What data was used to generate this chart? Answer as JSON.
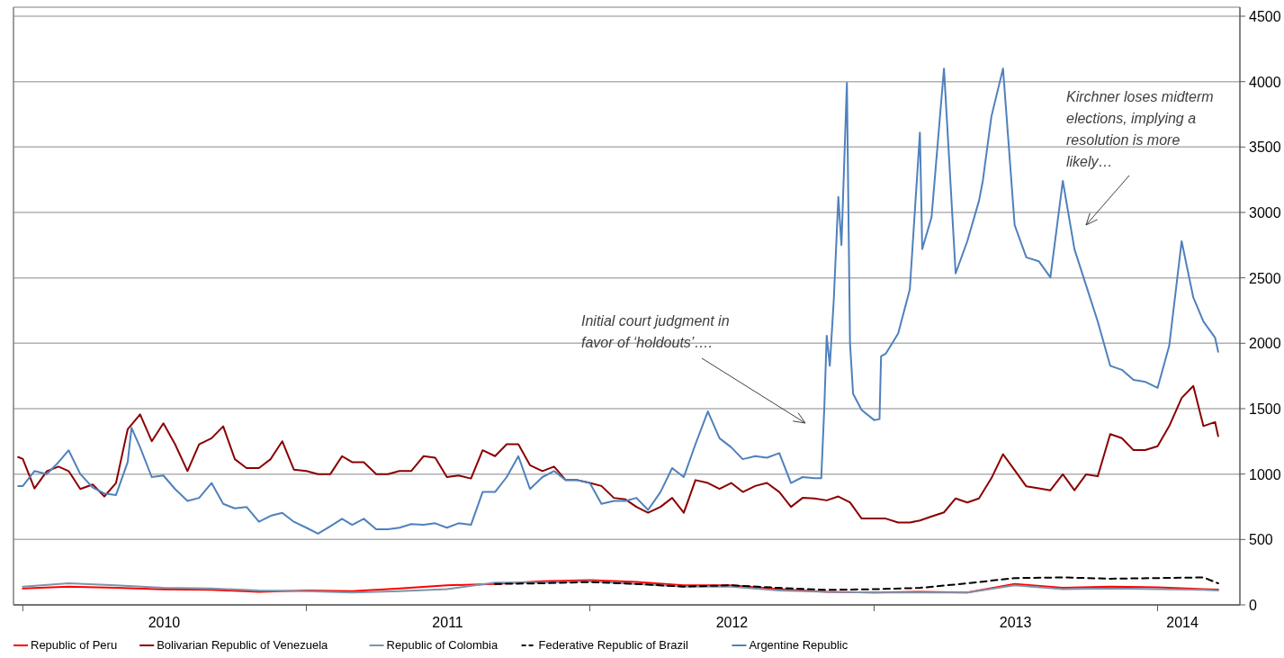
{
  "chart_data": {
    "type": "line",
    "xlim": [
      "2009-12-20",
      "2014-04-17"
    ],
    "ylim": [
      0,
      4500
    ],
    "yticks": [
      0,
      500,
      1000,
      1500,
      2000,
      2500,
      3000,
      3500,
      4000,
      4500
    ],
    "xticks": [
      {
        "value": "2010-01-01",
        "label": null
      },
      {
        "value": "2010-07-02",
        "label": "2010"
      },
      {
        "value": "2011-01-01",
        "label": null
      },
      {
        "value": "2011-07-02",
        "label": "2011"
      },
      {
        "value": "2012-01-01",
        "label": null
      },
      {
        "value": "2012-07-02",
        "label": "2012"
      },
      {
        "value": "2013-01-01",
        "label": null
      },
      {
        "value": "2013-07-02",
        "label": "2013"
      },
      {
        "value": "2014-01-01",
        "label": null
      },
      {
        "value": "2014-02-02",
        "label": "2014"
      }
    ],
    "grid": "y",
    "legend": "bottom",
    "annotations": [
      "Initial court judgment in favor of ‘holdouts’….",
      "Kirchner loses midterm elections, implying a resolution is more likely…"
    ],
    "x": [
      "2009-12-26",
      "2010-01-01",
      "2010-01-16",
      "2010-02-01",
      "2010-02-16",
      "2010-03-01",
      "2010-03-16",
      "2010-04-01",
      "2010-04-16",
      "2010-05-01",
      "2010-05-16",
      "2010-06-01",
      "2010-06-16",
      "2010-07-01",
      "2010-07-16",
      "2010-08-01",
      "2010-08-16",
      "2010-09-01",
      "2010-09-16",
      "2010-10-01",
      "2010-10-16",
      "2010-11-01",
      "2010-11-16",
      "2010-12-01",
      "2010-12-16",
      "2011-01-01",
      "2011-01-16",
      "2011-02-01",
      "2011-02-16",
      "2011-03-01",
      "2011-03-16",
      "2011-04-01",
      "2011-04-16",
      "2011-05-01",
      "2011-05-16",
      "2011-06-01",
      "2011-06-16",
      "2011-07-01",
      "2011-07-16",
      "2011-08-01",
      "2011-08-16",
      "2011-09-01",
      "2011-09-16",
      "2011-10-01",
      "2011-10-16",
      "2011-11-01",
      "2011-11-16",
      "2011-12-01",
      "2011-12-16",
      "2012-01-01",
      "2012-01-16",
      "2012-02-01",
      "2012-02-16",
      "2012-03-01",
      "2012-03-16",
      "2012-04-01",
      "2012-04-16",
      "2012-05-01",
      "2012-05-16",
      "2012-06-01",
      "2012-06-16",
      "2012-07-01",
      "2012-07-16",
      "2012-08-01",
      "2012-08-16",
      "2012-09-01",
      "2012-09-16",
      "2012-10-01",
      "2012-10-16",
      "2012-11-01",
      "2012-11-16",
      "2012-12-01",
      "2012-12-16",
      "2013-01-01",
      "2013-01-16",
      "2013-02-01",
      "2013-02-16",
      "2013-03-01",
      "2013-03-16",
      "2013-04-01",
      "2013-04-16",
      "2013-05-01",
      "2013-05-16",
      "2013-06-01",
      "2013-06-16",
      "2013-07-01",
      "2013-07-16",
      "2013-08-01",
      "2013-08-16",
      "2013-09-01",
      "2013-09-16",
      "2013-10-01",
      "2013-10-16",
      "2013-11-01",
      "2013-11-16",
      "2013-12-01",
      "2013-12-16",
      "2014-01-01",
      "2014-01-16",
      "2014-02-01",
      "2014-02-16",
      "2014-03-01",
      "2014-03-16",
      "2014-03-20"
    ],
    "series": [
      {
        "name": "Republic of Peru",
        "color": "#ff0000",
        "x": [
          "2010-01-01",
          "2010-03-01",
          "2010-05-01",
          "2010-07-01",
          "2010-09-01",
          "2010-11-01",
          "2011-01-01",
          "2011-03-01",
          "2011-05-01",
          "2011-07-01",
          "2011-09-01",
          "2011-11-01",
          "2012-01-01",
          "2012-03-01",
          "2012-05-01",
          "2012-07-01",
          "2012-09-01",
          "2012-11-01",
          "2013-01-01",
          "2013-03-01",
          "2013-05-01",
          "2013-07-01",
          "2013-09-01",
          "2013-11-01",
          "2014-01-01",
          "2014-03-01",
          "2014-03-20"
        ],
        "values": [
          125,
          140,
          130,
          118,
          115,
          100,
          110,
          105,
          125,
          150,
          160,
          180,
          190,
          175,
          150,
          150,
          120,
          100,
          95,
          100,
          95,
          160,
          130,
          140,
          135,
          120,
          117
        ]
      },
      {
        "name": "Bolivarian Republic of Venezuela",
        "color": "#8b0000",
        "values": [
          1130,
          1115,
          890,
          1023,
          1057,
          1023,
          886,
          920,
          829,
          932,
          1342,
          1456,
          1251,
          1388,
          1228,
          1023,
          1228,
          1274,
          1365,
          1114,
          1046,
          1046,
          1114,
          1251,
          1034,
          1023,
          1000,
          1000,
          1137,
          1091,
          1091,
          1000,
          1000,
          1023,
          1023,
          1137,
          1125,
          977,
          989,
          966,
          1182,
          1137,
          1228,
          1228,
          1068,
          1023,
          1057,
          954,
          954,
          932,
          909,
          818,
          806,
          749,
          704,
          749,
          818,
          704,
          954,
          932,
          886,
          932,
          863,
          909,
          932,
          863,
          749,
          818,
          814,
          799,
          829,
          783,
          660,
          660,
          660,
          630,
          630,
          645,
          676,
          707,
          814,
          783,
          814,
          968,
          1152,
          1029,
          906,
          891,
          876,
          998,
          876,
          998,
          983,
          1306,
          1275,
          1183,
          1183,
          1213,
          1367,
          1582,
          1674,
          1367,
          1398,
          1290
        ]
      },
      {
        "name": "Republic of Colombia",
        "color": "#7f93a8",
        "x": [
          "2010-01-01",
          "2010-03-01",
          "2010-05-01",
          "2010-07-01",
          "2010-09-01",
          "2010-11-01",
          "2011-01-01",
          "2011-03-01",
          "2011-05-01",
          "2011-07-01",
          "2011-09-01",
          "2011-11-01",
          "2012-01-01",
          "2012-03-01",
          "2012-05-01",
          "2012-07-01",
          "2012-09-01",
          "2012-11-01",
          "2013-01-01",
          "2013-03-01",
          "2013-05-01",
          "2013-07-01",
          "2013-09-01",
          "2013-11-01",
          "2014-01-01",
          "2014-03-01",
          "2014-03-20"
        ],
        "values": [
          140,
          165,
          150,
          130,
          125,
          110,
          105,
          95,
          105,
          120,
          170,
          170,
          180,
          160,
          140,
          140,
          110,
          100,
          95,
          95,
          95,
          150,
          120,
          125,
          120,
          115,
          110
        ]
      },
      {
        "name": "Federative Republic of Brazil",
        "color": "#000000",
        "line_style": "dashed",
        "x": [
          "2011-09-01",
          "2011-11-01",
          "2012-01-01",
          "2012-03-01",
          "2012-05-01",
          "2012-07-01",
          "2012-09-01",
          "2012-11-01",
          "2013-01-01",
          "2013-03-01",
          "2013-05-01",
          "2013-07-01",
          "2013-09-01",
          "2013-11-01",
          "2014-01-01",
          "2014-03-01",
          "2014-03-20"
        ],
        "values": [
          160,
          165,
          175,
          160,
          140,
          150,
          130,
          115,
          120,
          130,
          165,
          205,
          210,
          200,
          205,
          210,
          165
        ]
      },
      {
        "name": "Argentine Republic",
        "color": "#4f81bd",
        "x": [
          "2009-12-26",
          "2010-01-01",
          "2010-01-16",
          "2010-02-01",
          "2010-02-16",
          "2010-03-01",
          "2010-03-16",
          "2010-04-01",
          "2010-04-16",
          "2010-05-01",
          "2010-05-16",
          "2010-05-21",
          "2010-06-01",
          "2010-06-16",
          "2010-07-01",
          "2010-07-16",
          "2010-08-01",
          "2010-08-16",
          "2010-09-01",
          "2010-09-16",
          "2010-10-01",
          "2010-10-16",
          "2010-11-01",
          "2010-11-16",
          "2010-12-01",
          "2010-12-16",
          "2011-01-01",
          "2011-01-16",
          "2011-02-01",
          "2011-02-16",
          "2011-03-01",
          "2011-03-16",
          "2011-04-01",
          "2011-04-16",
          "2011-05-01",
          "2011-05-16",
          "2011-06-01",
          "2011-06-16",
          "2011-07-01",
          "2011-07-16",
          "2011-08-01",
          "2011-08-16",
          "2011-09-01",
          "2011-09-16",
          "2011-10-01",
          "2011-10-16",
          "2011-11-01",
          "2011-11-16",
          "2011-12-01",
          "2011-12-16",
          "2012-01-01",
          "2012-01-16",
          "2012-02-01",
          "2012-02-16",
          "2012-03-01",
          "2012-03-16",
          "2012-04-01",
          "2012-04-16",
          "2012-05-01",
          "2012-05-16",
          "2012-06-01",
          "2012-06-16",
          "2012-07-01",
          "2012-07-16",
          "2012-08-01",
          "2012-08-16",
          "2012-09-01",
          "2012-09-16",
          "2012-10-01",
          "2012-10-16",
          "2012-10-25",
          "2012-10-29",
          "2012-11-01",
          "2012-11-05",
          "2012-11-10",
          "2012-11-16",
          "2012-11-20",
          "2012-11-27",
          "2012-12-01",
          "2012-12-05",
          "2012-12-16",
          "2013-01-01",
          "2013-01-08",
          "2013-01-10",
          "2013-01-16",
          "2013-02-01",
          "2013-02-16",
          "2013-03-01",
          "2013-03-04",
          "2013-03-16",
          "2013-04-01",
          "2013-04-16",
          "2013-05-01",
          "2013-05-16",
          "2013-05-21",
          "2013-06-01",
          "2013-06-16",
          "2013-07-01",
          "2013-07-16",
          "2013-08-01",
          "2013-08-16",
          "2013-09-01",
          "2013-09-16",
          "2013-10-01",
          "2013-10-16",
          "2013-11-01",
          "2013-11-16",
          "2013-12-01",
          "2013-12-16",
          "2014-01-01",
          "2014-01-16",
          "2014-02-01",
          "2014-02-16",
          "2014-03-01",
          "2014-03-16",
          "2014-03-20"
        ],
        "values": [
          909,
          909,
          1023,
          1000,
          1091,
          1182,
          1000,
          897,
          852,
          840,
          1091,
          1353,
          1205,
          977,
          989,
          886,
          795,
          818,
          932,
          772,
          738,
          749,
          635,
          681,
          704,
          635,
          590,
          544,
          601,
          658,
          612,
          658,
          578,
          578,
          590,
          617,
          612,
          624,
          590,
          624,
          612,
          863,
          863,
          977,
          1137,
          886,
          977,
          1023,
          954,
          954,
          932,
          772,
          795,
          795,
          818,
          726,
          863,
          1046,
          977,
          1228,
          1479,
          1274,
          1205,
          1114,
          1137,
          1125,
          1160,
          932,
          977,
          968,
          968,
          1520,
          2058,
          1828,
          2319,
          3118,
          2750,
          3990,
          2000,
          1613,
          1490,
          1413,
          1420,
          1900,
          1920,
          2074,
          2412,
          3610,
          2719,
          2964,
          4100,
          2534,
          2780,
          3087,
          3241,
          3732,
          4100,
          2903,
          2657,
          2627,
          2504,
          3241,
          2719,
          2442,
          2166,
          1828,
          1797,
          1720,
          1705,
          1659,
          1981,
          2780,
          2350,
          2166,
          2043,
          1935
        ]
      }
    ]
  }
}
